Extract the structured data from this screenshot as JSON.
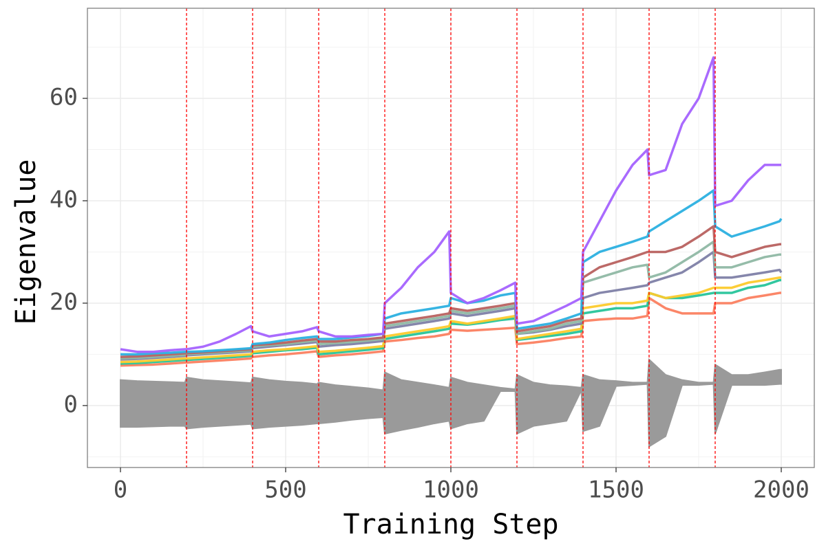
{
  "chart_data": {
    "type": "line",
    "xlabel": "Training Step",
    "ylabel": "Eigenvalue",
    "xlim": [
      -100,
      2100
    ],
    "ylim": [
      -12.1,
      77.6
    ],
    "xticks": [
      0,
      500,
      1000,
      1500,
      2000
    ],
    "yticks": [
      0,
      20,
      40,
      60
    ],
    "x_minor_grid": [
      250,
      750,
      1250,
      1750
    ],
    "y_minor_grid": [
      -10,
      10,
      30,
      50,
      70
    ],
    "grid": true,
    "vlines": [
      200,
      400,
      600,
      800,
      1000,
      1200,
      1400,
      1600,
      1800
    ],
    "vline_color": "#ff0000",
    "x": [
      0,
      50,
      100,
      150,
      195,
      200,
      250,
      300,
      350,
      395,
      400,
      450,
      500,
      550,
      595,
      600,
      650,
      700,
      750,
      795,
      800,
      850,
      900,
      950,
      995,
      1000,
      1050,
      1100,
      1150,
      1195,
      1200,
      1250,
      1300,
      1350,
      1395,
      1400,
      1450,
      1500,
      1550,
      1595,
      1600,
      1650,
      1700,
      1750,
      1795,
      1800,
      1850,
      1900,
      1950,
      1995,
      2000
    ],
    "band": {
      "color": "#9a9a9a",
      "high": [
        5,
        4.8,
        4.7,
        4.6,
        4.5,
        5.5,
        5,
        4.8,
        4.6,
        4.4,
        5.5,
        5,
        4.7,
        4.5,
        4.2,
        4.5,
        4,
        3.7,
        3.4,
        3,
        6.5,
        5,
        4.5,
        4,
        3.5,
        5.5,
        4.5,
        4,
        3.5,
        3.2,
        6,
        4.5,
        4,
        3.8,
        3.5,
        6,
        5,
        4.8,
        4.5,
        4.5,
        9,
        6,
        5,
        4.5,
        4.5,
        8,
        6,
        6,
        6.5,
        7,
        7
      ],
      "low": [
        -4.2,
        -4.2,
        -4.1,
        -4,
        -4,
        -4.5,
        -4.2,
        -4,
        -3.8,
        -3.6,
        -4.5,
        -4.2,
        -4,
        -3.8,
        -3.5,
        -3.5,
        -3.2,
        -2.8,
        -2.5,
        -2.3,
        -5.5,
        -4.8,
        -4.2,
        -3.5,
        -3,
        -4.5,
        -3.5,
        -3,
        2.8,
        2.8,
        -5.5,
        -4,
        -3.5,
        -3,
        3,
        -5,
        -4,
        3.8,
        4,
        4.2,
        -8,
        -6,
        4,
        4,
        4.2,
        -5.5,
        4,
        4,
        4,
        4.2,
        4.2
      ]
    },
    "series": [
      {
        "color": "#fb8060",
        "values": [
          7.8,
          7.9,
          8,
          8.2,
          8.4,
          8.4,
          8.6,
          8.8,
          9,
          9.2,
          9.5,
          9.8,
          10,
          10.3,
          10.6,
          9.5,
          9.8,
          10,
          10.3,
          10.6,
          12.5,
          12.8,
          13.2,
          13.5,
          14,
          14.8,
          14.6,
          14.8,
          15,
          15.2,
          12,
          12.3,
          12.7,
          13.2,
          13.5,
          16.5,
          16.8,
          17,
          17,
          17.5,
          21,
          19,
          18,
          18,
          18,
          20,
          20,
          21,
          21.5,
          22,
          22
        ]
      },
      {
        "color": "#27c49a",
        "values": [
          8.2,
          8.3,
          8.5,
          8.7,
          8.9,
          8.9,
          9.1,
          9.3,
          9.5,
          9.7,
          10.2,
          10.5,
          10.8,
          11,
          11.3,
          10,
          10.3,
          10.6,
          10.9,
          11.2,
          13,
          13.5,
          14,
          14.5,
          15,
          16,
          15.8,
          16.2,
          16.7,
          17,
          12.8,
          13.2,
          13.6,
          14,
          14.5,
          18,
          18.5,
          19,
          19,
          19.5,
          22,
          21,
          21,
          21.5,
          22,
          22,
          22,
          23,
          23.5,
          24.5,
          24.5
        ]
      },
      {
        "color": "#fcca2c",
        "values": [
          8.5,
          8.6,
          8.8,
          9,
          9.2,
          9.2,
          9.4,
          9.6,
          9.8,
          10,
          10.5,
          10.8,
          11,
          11.3,
          11.6,
          10.5,
          10.7,
          11,
          11.3,
          11.6,
          13.5,
          14,
          14.5,
          15,
          15.5,
          16.5,
          16,
          16.5,
          17,
          17.5,
          13,
          13.5,
          14,
          14.5,
          15,
          19,
          19.5,
          20,
          20,
          20.5,
          22,
          21,
          21.5,
          22,
          23,
          23,
          23,
          24,
          24.5,
          25,
          25
        ]
      },
      {
        "color": "#7e7fa6",
        "values": [
          9,
          9.1,
          9.3,
          9.5,
          9.7,
          9.8,
          10,
          10.2,
          10.4,
          10.6,
          11.2,
          11.5,
          11.8,
          12.1,
          12.4,
          11.5,
          11.8,
          12,
          12.3,
          12.6,
          15,
          15.5,
          16,
          16.5,
          17,
          18,
          17.5,
          18,
          18.5,
          19,
          14,
          14.3,
          14.8,
          15.5,
          16,
          21,
          22,
          22.5,
          23,
          23.5,
          24,
          25,
          26,
          28,
          30,
          25,
          25,
          25.5,
          26,
          26.5,
          26
        ]
      },
      {
        "color": "#8fb8a4",
        "values": [
          9.2,
          9.3,
          9.5,
          9.7,
          9.9,
          10,
          10.2,
          10.4,
          10.6,
          10.8,
          11.5,
          11.8,
          12,
          12.4,
          12.7,
          12,
          12.2,
          12.4,
          12.7,
          13,
          15.5,
          16,
          16.5,
          17,
          17.5,
          18.5,
          18,
          18.5,
          19,
          19.5,
          14,
          14.5,
          15,
          16,
          16.5,
          24,
          25,
          26,
          27,
          27.5,
          25,
          26,
          28,
          30,
          32,
          27,
          27,
          28,
          29,
          29.5,
          29.5
        ]
      },
      {
        "color": "#b8615f",
        "values": [
          9.5,
          9.6,
          9.8,
          10,
          10.2,
          10.2,
          10.4,
          10.6,
          10.8,
          11,
          11.8,
          12,
          12.3,
          12.7,
          13,
          12.5,
          12.5,
          12.8,
          13,
          13.3,
          16,
          16.5,
          17,
          17.5,
          18,
          19,
          18.5,
          19,
          19.5,
          20,
          14.5,
          15,
          15.5,
          16.5,
          17,
          25,
          27,
          28,
          29,
          30,
          30,
          30,
          31,
          33,
          35,
          30,
          29,
          30,
          31,
          31.5,
          31.5
        ]
      },
      {
        "color": "#2bb0e0",
        "values": [
          10,
          10,
          10.2,
          10.3,
          10.5,
          10.5,
          10.6,
          10.8,
          11,
          11.2,
          12,
          12.3,
          12.8,
          13.2,
          13.5,
          13,
          13,
          13.3,
          13.6,
          14,
          17,
          18,
          18.5,
          19,
          19.5,
          21,
          20,
          20.5,
          21.5,
          22,
          15,
          15.5,
          16,
          17,
          18,
          28,
          30,
          31,
          32,
          33,
          34,
          36,
          38,
          40,
          42,
          35,
          33,
          34,
          35,
          36,
          36.5
        ]
      },
      {
        "color": "#a462fe",
        "values": [
          11,
          10.5,
          10.5,
          10.8,
          11,
          11,
          11.5,
          12.5,
          14,
          15.5,
          14.5,
          13.5,
          14,
          14.5,
          15.3,
          14.5,
          13.5,
          13.5,
          13.8,
          14,
          20,
          23,
          27,
          30,
          34,
          22,
          20,
          21,
          22.5,
          24,
          16,
          16.5,
          18,
          19.5,
          21,
          30,
          36,
          42,
          47,
          50,
          45,
          46,
          55,
          60,
          68,
          39,
          40,
          44,
          47,
          47,
          47
        ]
      }
    ]
  }
}
